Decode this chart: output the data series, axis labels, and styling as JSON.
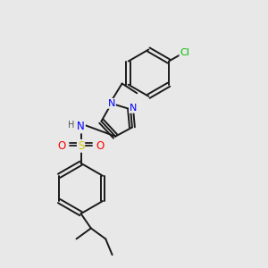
{
  "background_color": "#e8e8e8",
  "bond_color": "#1a1a1a",
  "atom_colors": {
    "N": "#0000ff",
    "S": "#cccc00",
    "O": "#ff0000",
    "Cl": "#00bb00",
    "H": "#555555",
    "C": "#1a1a1a"
  },
  "figsize": [
    3.0,
    3.0
  ],
  "dpi": 100
}
